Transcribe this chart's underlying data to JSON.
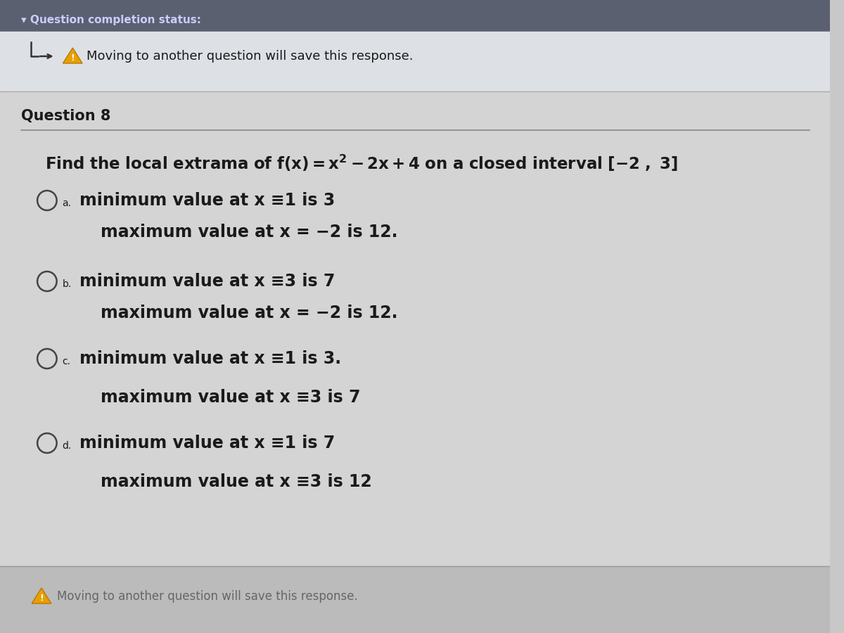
{
  "bg_main": "#c8c8c8",
  "bg_top_panel": "#e2e4e8",
  "bg_content": "#d8d8d8",
  "bg_footer": "#b8b8b8",
  "warning_color": "#e8a000",
  "top_notice": "Moving to another question will save this response.",
  "question_label": "Question 8",
  "font_color": "#1a1a1a",
  "light_font_color": "#666666",
  "separator_color": "#888888",
  "option_data": [
    {
      "label": "a.",
      "line1": "minimum value at x ≡1 is 3",
      "line2": "maximum value at x = −2 is 12."
    },
    {
      "label": "b.",
      "line1": "minimum value at x ≡3 is 7",
      "line2": "maximum value at x = −2 is 12."
    },
    {
      "label": "c.",
      "line1": "minimum value at x ≡1 is 3.",
      "line2": "maximum value at x ≡3 is 7"
    },
    {
      "label": "d.",
      "line1": "minimum value at x ≡1 is 7",
      "line2": "maximum value at x ≡3 is 12"
    }
  ],
  "bottom_notice": "Moving to another question will save this response."
}
